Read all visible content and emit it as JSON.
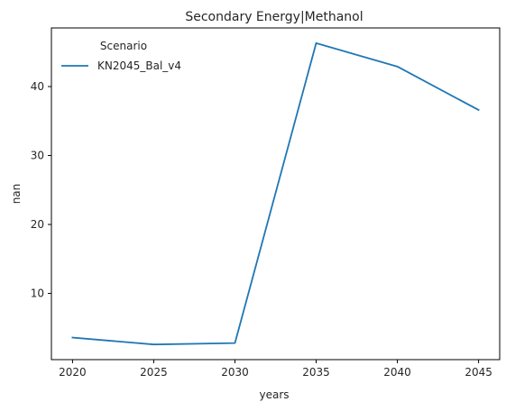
{
  "chart_data": {
    "type": "line",
    "title": "Secondary Energy|Methanol",
    "xlabel": "years",
    "ylabel": "nan",
    "x": [
      2020,
      2025,
      2030,
      2035,
      2040,
      2045
    ],
    "series": [
      {
        "name": "KN2045_Bal_v4",
        "color": "#1f77b4",
        "values": [
          3.6,
          2.6,
          2.8,
          46.3,
          42.9,
          36.6
        ]
      }
    ],
    "xticks": [
      2020,
      2025,
      2030,
      2035,
      2040,
      2045
    ],
    "yticks": [
      10,
      20,
      30,
      40
    ],
    "xlim": [
      2018.7,
      2046.3
    ],
    "ylim": [
      0.4,
      48.5
    ],
    "legend": {
      "title": "Scenario",
      "placement": "upper-left"
    },
    "grid": false
  }
}
